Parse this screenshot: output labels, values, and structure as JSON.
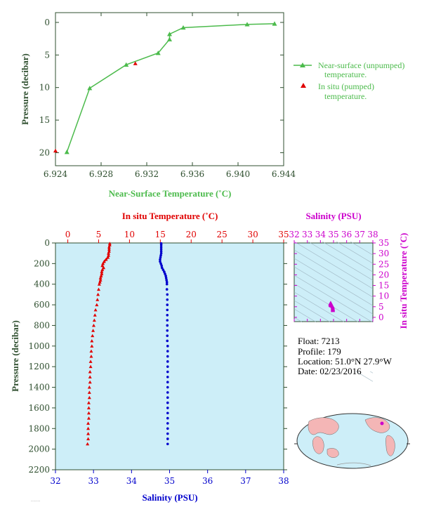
{
  "colors": {
    "green": "#4cbb4c",
    "red": "#e00000",
    "blue": "#0000cc",
    "magenta": "#cc00cc",
    "axis_dark": "#2f4f2f",
    "panel_bg": "#cdeef8",
    "land": "#f4b6b6",
    "ocean": "#cdeef8"
  },
  "info": {
    "float": "Float:  7213",
    "profile": "Profile:  179",
    "location": "Location:  51.0°N  27.9°W",
    "date": "Date:  02/23/2016"
  },
  "chart_data": [
    {
      "type": "line",
      "title": "",
      "xlabel": "Near-Surface Temperature (˚C)",
      "ylabel": "Pressure (decibar)",
      "xlim": [
        6.924,
        6.944
      ],
      "ylim": [
        22,
        -1.5
      ],
      "xticks": [
        "6.924",
        "6.928",
        "6.932",
        "6.936",
        "6.940",
        "6.944"
      ],
      "yticks": [
        "0",
        "5",
        "10",
        "15",
        "20"
      ],
      "legend_position": "right",
      "series": [
        {
          "name": "Near-surface (unpumped) temperature.",
          "marker": "triangle",
          "points": [
            [
              6.9432,
              0.2
            ],
            [
              6.9408,
              0.3
            ],
            [
              6.9352,
              0.8
            ],
            [
              6.934,
              1.8
            ],
            [
              6.934,
              2.6
            ],
            [
              6.933,
              4.7
            ],
            [
              6.9302,
              6.5
            ],
            [
              6.927,
              10.1
            ],
            [
              6.925,
              19.9
            ]
          ]
        },
        {
          "name": "In situ (pumped) temperature.",
          "marker": "triangle",
          "points": [
            [
              6.931,
              6.3
            ],
            [
              6.924,
              19.7
            ]
          ]
        }
      ]
    },
    {
      "type": "scatter",
      "title": "",
      "xlabel_top": "In situ Temperature (˚C)",
      "xlabel_bottom": "Salinity (PSU)",
      "ylabel": "Pressure (decibar)",
      "temp_xlim": [
        -2,
        35
      ],
      "sal_xlim": [
        32,
        38
      ],
      "ylim": [
        2200,
        0
      ],
      "temp_ticks": [
        "0",
        "5",
        "10",
        "15",
        "20",
        "25",
        "30",
        "35"
      ],
      "sal_ticks": [
        "32",
        "33",
        "34",
        "35",
        "36",
        "37",
        "38"
      ],
      "yticks": [
        "0",
        "200",
        "400",
        "600",
        "800",
        "1000",
        "1200",
        "1400",
        "1600",
        "1800",
        "2000",
        "2200"
      ],
      "grid": false,
      "series": [
        {
          "name": "",
          "points": [
            [
              6.8,
              5
            ],
            [
              6.8,
              20
            ],
            [
              6.7,
              40
            ],
            [
              6.7,
              60
            ],
            [
              6.7,
              80
            ],
            [
              6.6,
              100
            ],
            [
              6.6,
              120
            ],
            [
              6.5,
              140
            ],
            [
              6.2,
              160
            ],
            [
              5.9,
              180
            ],
            [
              5.7,
              200
            ],
            [
              5.6,
              220
            ],
            [
              5.8,
              240
            ],
            [
              5.6,
              260
            ],
            [
              5.5,
              280
            ],
            [
              5.5,
              300
            ],
            [
              5.4,
              320
            ],
            [
              5.3,
              340
            ],
            [
              5.3,
              360
            ],
            [
              5.2,
              380
            ],
            [
              5.1,
              400
            ],
            [
              5.0,
              450
            ],
            [
              4.9,
              500
            ],
            [
              4.8,
              550
            ],
            [
              4.7,
              600
            ],
            [
              4.5,
              650
            ],
            [
              4.4,
              700
            ],
            [
              4.3,
              750
            ],
            [
              4.2,
              800
            ],
            [
              4.1,
              850
            ],
            [
              4.0,
              900
            ],
            [
              3.9,
              950
            ],
            [
              3.9,
              1000
            ],
            [
              3.8,
              1050
            ],
            [
              3.8,
              1100
            ],
            [
              3.7,
              1150
            ],
            [
              3.7,
              1200
            ],
            [
              3.6,
              1250
            ],
            [
              3.6,
              1300
            ],
            [
              3.6,
              1350
            ],
            [
              3.5,
              1400
            ],
            [
              3.5,
              1450
            ],
            [
              3.5,
              1500
            ],
            [
              3.4,
              1550
            ],
            [
              3.4,
              1600
            ],
            [
              3.4,
              1650
            ],
            [
              3.4,
              1700
            ],
            [
              3.3,
              1750
            ],
            [
              3.3,
              1800
            ],
            [
              3.3,
              1850
            ],
            [
              3.3,
              1900
            ],
            [
              3.2,
              1950
            ]
          ]
        },
        {
          "name": "",
          "points": [
            [
              34.78,
              5
            ],
            [
              34.78,
              20
            ],
            [
              34.78,
              40
            ],
            [
              34.78,
              60
            ],
            [
              34.78,
              80
            ],
            [
              34.78,
              100
            ],
            [
              34.77,
              120
            ],
            [
              34.76,
              140
            ],
            [
              34.75,
              160
            ],
            [
              34.75,
              180
            ],
            [
              34.77,
              200
            ],
            [
              34.79,
              220
            ],
            [
              34.8,
              240
            ],
            [
              34.83,
              260
            ],
            [
              34.86,
              280
            ],
            [
              34.88,
              300
            ],
            [
              34.9,
              320
            ],
            [
              34.91,
              340
            ],
            [
              34.92,
              360
            ],
            [
              34.93,
              380
            ],
            [
              34.93,
              400
            ],
            [
              34.93,
              450
            ],
            [
              34.94,
              500
            ],
            [
              34.94,
              550
            ],
            [
              34.94,
              600
            ],
            [
              34.94,
              650
            ],
            [
              34.94,
              700
            ],
            [
              34.94,
              750
            ],
            [
              34.94,
              800
            ],
            [
              34.94,
              850
            ],
            [
              34.94,
              900
            ],
            [
              34.94,
              950
            ],
            [
              34.95,
              1000
            ],
            [
              34.95,
              1050
            ],
            [
              34.95,
              1100
            ],
            [
              34.95,
              1150
            ],
            [
              34.95,
              1200
            ],
            [
              34.95,
              1250
            ],
            [
              34.95,
              1300
            ],
            [
              34.95,
              1350
            ],
            [
              34.95,
              1400
            ],
            [
              34.95,
              1450
            ],
            [
              34.95,
              1500
            ],
            [
              34.95,
              1550
            ],
            [
              34.95,
              1600
            ],
            [
              34.95,
              1650
            ],
            [
              34.95,
              1700
            ],
            [
              34.95,
              1750
            ],
            [
              34.95,
              1800
            ],
            [
              34.95,
              1850
            ],
            [
              34.95,
              1900
            ],
            [
              34.95,
              1950
            ]
          ]
        }
      ]
    },
    {
      "type": "scatter",
      "title": "",
      "xlabel_top": "Salinity (PSU)",
      "ylabel_right": "In situ Temperature (˚C)",
      "xlim": [
        32,
        38
      ],
      "ylim": [
        -2,
        35
      ],
      "xticks": [
        "32",
        "33",
        "34",
        "35",
        "36",
        "37",
        "38"
      ],
      "yticks": [
        "0",
        "5",
        "10",
        "15",
        "20",
        "25",
        "30",
        "35"
      ],
      "series": [
        {
          "name": "",
          "points": [
            [
              34.78,
              6.8
            ],
            [
              34.78,
              6.6
            ],
            [
              34.75,
              6.2
            ],
            [
              34.77,
              5.7
            ],
            [
              34.83,
              5.5
            ],
            [
              34.9,
              5.3
            ],
            [
              34.93,
              5.0
            ],
            [
              34.94,
              4.6
            ],
            [
              34.94,
              4.2
            ],
            [
              34.95,
              3.9
            ],
            [
              34.95,
              3.6
            ],
            [
              34.95,
              3.3
            ]
          ]
        }
      ]
    }
  ]
}
